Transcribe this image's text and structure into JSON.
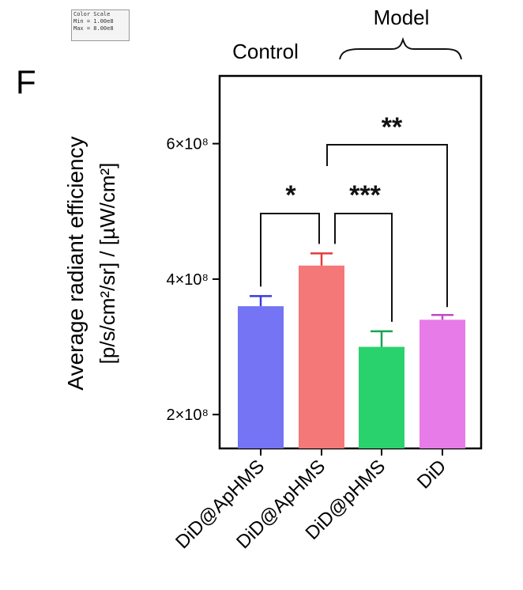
{
  "panel_label": "F",
  "color_scale": {
    "title": "Color Scale",
    "min": "Min = 1.00e8",
    "max": "Max = 8.00e8"
  },
  "group_labels": {
    "control": "Control",
    "model": "Model"
  },
  "colors": {
    "bar1": "#7474f4",
    "bar2": "#f57878",
    "bar3": "#2ad26e",
    "bar4": "#e77be7",
    "err1": "#3a3ae0",
    "err2": "#e23c3c",
    "err3": "#1aa352",
    "err4": "#c24ac2"
  },
  "chart_data": {
    "type": "bar",
    "categories": [
      "DiD@ApHMS",
      "DiD@ApHMS",
      "DiD@pHMS",
      "DiD"
    ],
    "values": [
      360000000.0,
      420000000.0,
      300000000.0,
      340000000.0
    ],
    "errors": [
      15000000.0,
      18000000.0,
      23000000.0,
      7000000.0
    ],
    "ylabel_line1": "Average radiant efficiency",
    "ylabel_line2": "[p/s/cm²/sr] / [µW/cm²]",
    "ylim": [
      150000000.0,
      700000000.0
    ],
    "yticks": [
      200000000.0,
      400000000.0,
      600000000.0
    ],
    "ytick_labels": [
      "2×10⁸",
      "4×10⁸",
      "6×10⁸"
    ],
    "significance": [
      {
        "from": 0,
        "to": 1,
        "label": "*"
      },
      {
        "from": 1,
        "to": 2,
        "label": "***"
      },
      {
        "from": 1,
        "to": 3,
        "label": "**"
      }
    ]
  }
}
